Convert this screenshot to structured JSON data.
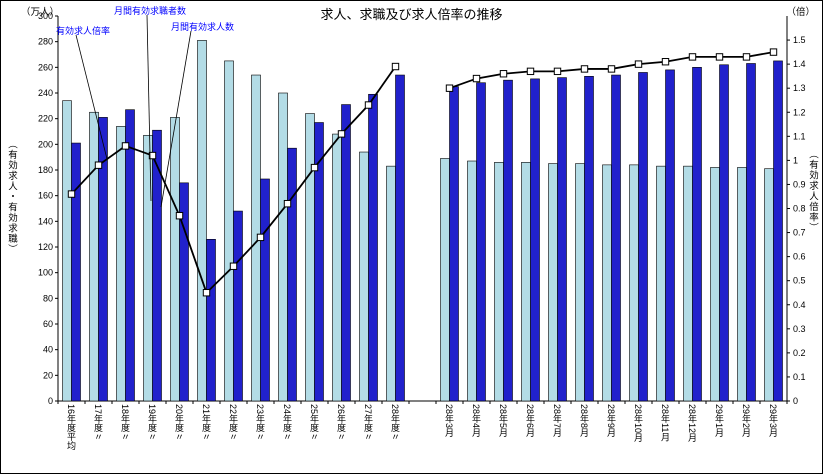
{
  "chart_data": {
    "type": "bar",
    "subtype": "grouped-bar-with-line-dual-axis",
    "title": "求人、求職及び求人倍率の推移",
    "left_axis": {
      "unit": "（万人）",
      "title": "（有効求人・有効求職）",
      "min": 0,
      "max": 300,
      "step": 20
    },
    "right_axis": {
      "unit": "（倍）",
      "title": "（有効求人倍率）",
      "min": 0,
      "max": 1.6,
      "step": 0.1,
      "top_label": 1.5
    },
    "legend_position": "annotations-top-left",
    "grid": "off",
    "series_meta": {
      "ratio_label": "有効求人倍率",
      "seekers_label": "月間有効求職者数",
      "openings_label": "月間有効求人数",
      "seekers_color": "#b3dce6",
      "openings_color": "#2121cc",
      "line_color": "#000000",
      "marker_fill": "#ffffff",
      "annotation_color": "#0000ff"
    },
    "groups": [
      {
        "name": "yearly",
        "categories": [
          "16年度平均",
          "17年度〃",
          "18年度〃",
          "19年度〃",
          "20年度〃",
          "21年度〃",
          "22年度〃",
          "23年度〃",
          "24年度〃",
          "25年度〃",
          "26年度〃",
          "27年度〃",
          "28年度〃"
        ],
        "seekers": [
          234,
          225,
          214,
          207,
          221,
          281,
          265,
          254,
          240,
          224,
          208,
          194,
          183
        ],
        "openings": [
          201,
          221,
          227,
          211,
          170,
          126,
          148,
          173,
          197,
          217,
          231,
          239,
          254
        ],
        "ratio": [
          0.86,
          0.98,
          1.06,
          1.02,
          0.77,
          0.45,
          0.56,
          0.68,
          0.82,
          0.97,
          1.11,
          1.23,
          1.39
        ]
      },
      {
        "name": "monthly",
        "categories": [
          "28年3月",
          "28年4月",
          "28年5月",
          "28年6月",
          "28年7月",
          "28年8月",
          "28年9月",
          "28年10月",
          "28年11月",
          "28年12月",
          "29年1月",
          "29年2月",
          "29年3月"
        ],
        "seekers": [
          189,
          187,
          186,
          186,
          185,
          185,
          184,
          184,
          183,
          183,
          182,
          182,
          181
        ],
        "openings": [
          245,
          248,
          250,
          251,
          252,
          253,
          254,
          256,
          258,
          260,
          262,
          263,
          265
        ],
        "ratio": [
          1.3,
          1.34,
          1.36,
          1.37,
          1.37,
          1.38,
          1.38,
          1.4,
          1.41,
          1.43,
          1.43,
          1.43,
          1.45
        ]
      }
    ]
  }
}
